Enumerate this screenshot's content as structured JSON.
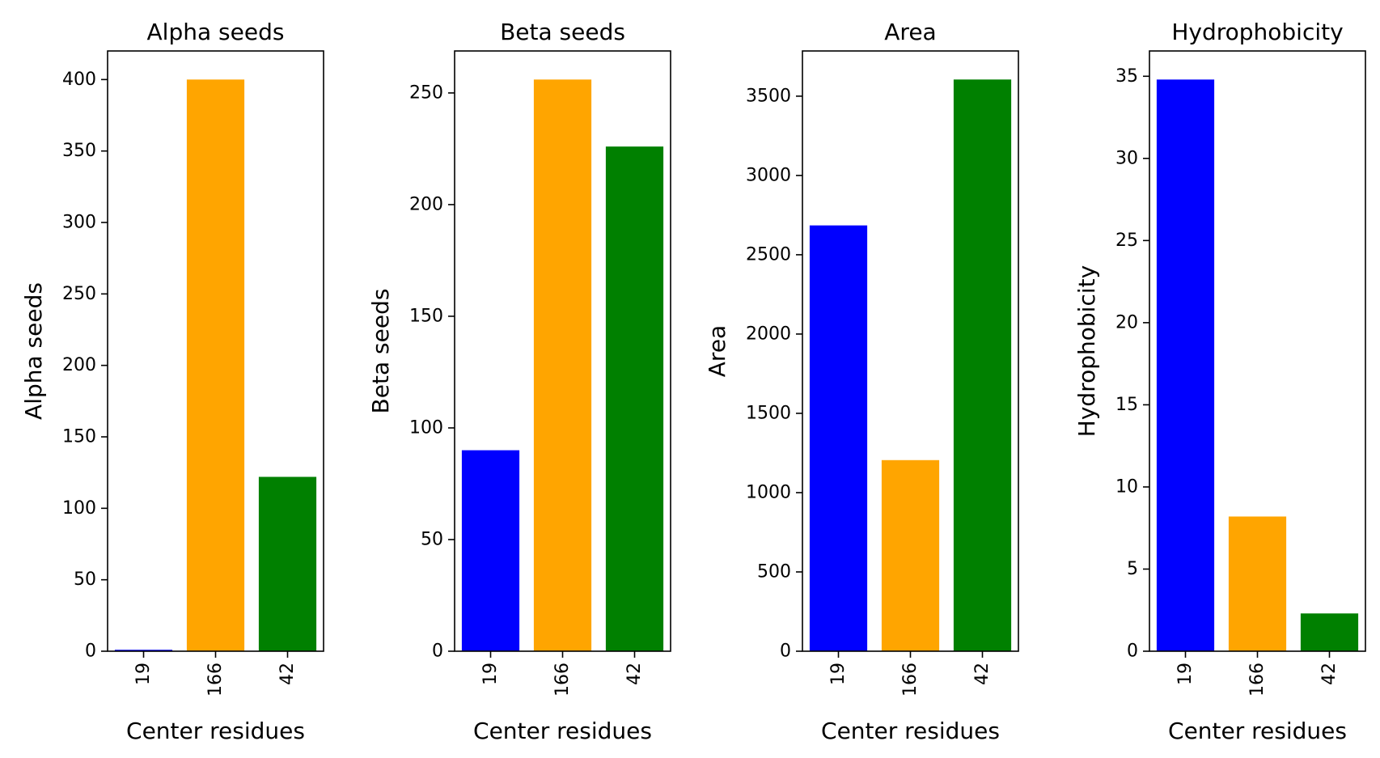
{
  "chart_data": [
    {
      "type": "bar",
      "title": "Alpha seeds",
      "xlabel": "Center residues",
      "ylabel": "Alpha seeds",
      "categories": [
        "19",
        "166",
        "42"
      ],
      "values": [
        1,
        400,
        122
      ],
      "colors": [
        "#0000ff",
        "#ffa500",
        "#008000"
      ],
      "ylim": [
        0,
        420
      ],
      "yticks": [
        0,
        50,
        100,
        150,
        200,
        250,
        300,
        350,
        400
      ],
      "grid": false
    },
    {
      "type": "bar",
      "title": "Beta seeds",
      "xlabel": "Center residues",
      "ylabel": "Beta seeds",
      "categories": [
        "19",
        "166",
        "42"
      ],
      "values": [
        90,
        256,
        226
      ],
      "colors": [
        "#0000ff",
        "#ffa500",
        "#008000"
      ],
      "ylim": [
        0,
        268.8
      ],
      "yticks": [
        0,
        50,
        100,
        150,
        200,
        250
      ],
      "grid": false
    },
    {
      "type": "bar",
      "title": "Area",
      "xlabel": "Center residues",
      "ylabel": "Area",
      "categories": [
        "19",
        "166",
        "42"
      ],
      "values": [
        2685,
        1205,
        3605
      ],
      "colors": [
        "#0000ff",
        "#ffa500",
        "#008000"
      ],
      "ylim": [
        0,
        3785
      ],
      "yticks": [
        0,
        500,
        1000,
        1500,
        2000,
        2500,
        3000,
        3500
      ],
      "grid": false
    },
    {
      "type": "bar",
      "title": "Hydrophobicity",
      "xlabel": "Center residues",
      "ylabel": "Hydrophobicity",
      "categories": [
        "19",
        "166",
        "42"
      ],
      "values": [
        34.8,
        8.2,
        2.3
      ],
      "colors": [
        "#0000ff",
        "#ffa500",
        "#008000"
      ],
      "ylim": [
        0,
        36.54
      ],
      "yticks": [
        0,
        5,
        10,
        15,
        20,
        25,
        30,
        35
      ],
      "grid": false
    }
  ]
}
